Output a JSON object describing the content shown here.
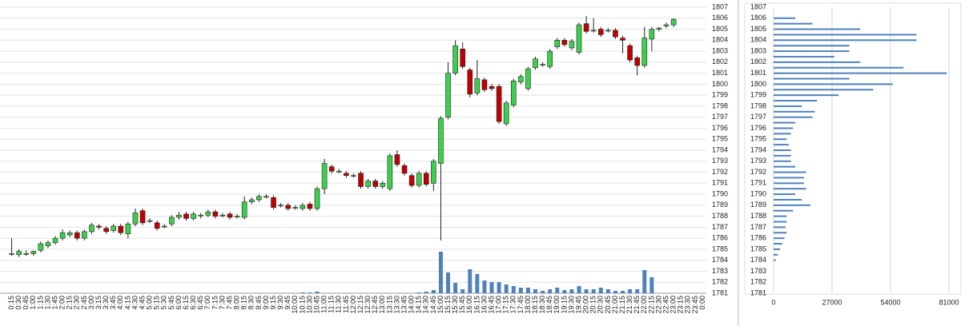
{
  "chart_data": [
    {
      "type": "candlestick",
      "categories": [
        "0:15",
        "0:30",
        "0:45",
        "1:00",
        "1:15",
        "1:30",
        "1:45",
        "2:00",
        "2:15",
        "2:30",
        "2:45",
        "3:00",
        "3:15",
        "3:30",
        "3:45",
        "4:00",
        "4:15",
        "4:30",
        "4:45",
        "5:00",
        "5:15",
        "5:30",
        "5:45",
        "6:00",
        "6:15",
        "6:30",
        "6:45",
        "7:00",
        "7:15",
        "7:30",
        "7:45",
        "8:00",
        "8:15",
        "8:30",
        "8:45",
        "9:00",
        "9:15",
        "9:30",
        "9:45",
        "10:00",
        "10:15",
        "10:30",
        "10:45",
        "11:00",
        "11:15",
        "11:30",
        "11:45",
        "12:00",
        "12:15",
        "12:30",
        "12:45",
        "13:00",
        "13:15",
        "13:30",
        "13:45",
        "14:00",
        "14:15",
        "14:30",
        "14:45",
        "15:00",
        "15:15",
        "15:30",
        "15:45",
        "16:00",
        "16:15",
        "16:30",
        "16:45",
        "17:00",
        "17:15",
        "17:30",
        "17:45",
        "18:00",
        "18:15",
        "18:30",
        "18:45",
        "19:00",
        "19:15",
        "19:30",
        "19:45",
        "20:00",
        "20:15",
        "20:30",
        "20:45",
        "21:00",
        "21:15",
        "21:30",
        "21:45",
        "22:00",
        "22:15",
        "22:30",
        "22:45",
        "23:00",
        "23:15",
        "23:30",
        "23:45",
        "0:00"
      ],
      "open": [
        1784.6,
        1784.5,
        1784.6,
        1784.6,
        1784.9,
        1785.3,
        1785.6,
        1786.0,
        1786.3,
        1786.5,
        1786.0,
        1786.6,
        1787.1,
        1786.9,
        1786.7,
        1787.1,
        1786.4,
        1787.3,
        1788.5,
        1787.6,
        1787.4,
        1787.1,
        1787.3,
        1787.9,
        1788.2,
        1787.8,
        1788.1,
        1788.1,
        1788.4,
        1788.1,
        1788.2,
        1788.0,
        1787.9,
        1789.3,
        1789.5,
        1789.8,
        1789.7,
        1789.0,
        1789.0,
        1788.8,
        1788.7,
        1789.1,
        1788.7,
        1790.5,
        1792.5,
        1792.1,
        1791.9,
        1791.7,
        1791.9,
        1790.7,
        1791.2,
        1790.7,
        1790.5,
        1793.6,
        1792.6,
        1791.7,
        1790.8,
        1791.9,
        1791.0,
        1792.8,
        1797.0,
        1801.0,
        1803.2,
        1801.3,
        1799.2,
        1800.4,
        1799.8,
        1799.8,
        1796.4,
        1798.1,
        1800.2,
        1799.6,
        1801.5,
        1801.8,
        1801.6,
        1803.4,
        1804.0,
        1803.3,
        1802.9,
        1805.5,
        1804.9,
        1805.0,
        1804.9,
        1804.9,
        1804.2,
        1803.5,
        1802.4,
        1801.7,
        1804.1,
        1805.0,
        1805.3,
        1805.4,
        null,
        null,
        null,
        null
      ],
      "high": [
        1786.0,
        1785.0,
        1784.9,
        1784.9,
        1785.7,
        1785.8,
        1786.2,
        1786.8,
        1786.7,
        1786.7,
        1786.8,
        1787.4,
        1787.3,
        1787.1,
        1787.3,
        1787.3,
        1787.5,
        1788.7,
        1788.7,
        1787.8,
        1787.6,
        1787.3,
        1788.1,
        1788.4,
        1788.4,
        1788.4,
        1788.3,
        1788.6,
        1788.6,
        1788.3,
        1788.4,
        1788.2,
        1789.8,
        1789.7,
        1790.0,
        1790.0,
        1789.9,
        1789.2,
        1789.2,
        1789.0,
        1789.2,
        1789.3,
        1790.7,
        1793.2,
        1792.7,
        1792.3,
        1792.1,
        1791.9,
        1792.1,
        1791.4,
        1791.4,
        1791.2,
        1793.7,
        1794.0,
        1792.8,
        1791.9,
        1792.1,
        1792.1,
        1793.2,
        1797.1,
        1802.0,
        1804.0,
        1803.8,
        1801.5,
        1802.2,
        1800.6,
        1800.0,
        1800.0,
        1798.5,
        1800.5,
        1800.9,
        1801.6,
        1802.5,
        1802.0,
        1803.2,
        1804.2,
        1804.2,
        1804.1,
        1805.6,
        1806.2,
        1806.0,
        1805.2,
        1805.1,
        1805.1,
        1804.4,
        1803.7,
        1802.6,
        1805.2,
        1805.2,
        1805.2,
        1805.6,
        1806.0,
        null,
        null,
        null,
        null
      ],
      "low": [
        1784.4,
        1784.3,
        1784.4,
        1784.4,
        1784.7,
        1785.1,
        1785.4,
        1785.8,
        1786.1,
        1785.8,
        1785.8,
        1786.4,
        1786.8,
        1786.4,
        1786.5,
        1786.3,
        1786.0,
        1787.1,
        1787.2,
        1787.4,
        1786.7,
        1786.9,
        1787.1,
        1787.7,
        1787.6,
        1787.6,
        1787.8,
        1787.9,
        1787.8,
        1787.9,
        1787.7,
        1787.8,
        1787.7,
        1789.1,
        1789.3,
        1789.6,
        1788.6,
        1788.8,
        1788.5,
        1788.6,
        1788.5,
        1788.5,
        1788.5,
        1790.0,
        1791.9,
        1791.9,
        1791.5,
        1791.5,
        1790.5,
        1790.5,
        1790.5,
        1790.5,
        1790.3,
        1792.5,
        1791.7,
        1790.6,
        1790.6,
        1790.7,
        1790.3,
        1785.8,
        1796.8,
        1800.8,
        1801.4,
        1798.8,
        1799.0,
        1799.3,
        1799.4,
        1796.4,
        1796.2,
        1797.9,
        1800.0,
        1799.4,
        1801.3,
        1801.6,
        1801.4,
        1803.2,
        1803.4,
        1803.1,
        1802.7,
        1804.6,
        1804.7,
        1804.3,
        1804.7,
        1804.1,
        1802.8,
        1802.0,
        1800.8,
        1801.5,
        1803.0,
        1804.8,
        1805.1,
        1805.2,
        null,
        null,
        null,
        null
      ],
      "close": [
        1784.6,
        1784.8,
        1784.6,
        1784.8,
        1785.5,
        1785.6,
        1786.0,
        1786.5,
        1786.5,
        1786.0,
        1786.6,
        1787.2,
        1787.0,
        1786.6,
        1787.1,
        1786.5,
        1787.3,
        1788.3,
        1787.4,
        1787.6,
        1786.9,
        1787.1,
        1787.9,
        1788.1,
        1787.8,
        1788.2,
        1788.1,
        1788.4,
        1788.0,
        1788.1,
        1787.9,
        1788.0,
        1789.3,
        1789.5,
        1789.8,
        1789.8,
        1788.8,
        1789.0,
        1788.7,
        1788.8,
        1789.0,
        1788.7,
        1790.5,
        1792.8,
        1792.1,
        1792.1,
        1791.7,
        1791.7,
        1790.7,
        1791.2,
        1790.7,
        1791.0,
        1793.5,
        1792.7,
        1791.9,
        1790.8,
        1791.9,
        1790.9,
        1793.0,
        1796.9,
        1801.0,
        1803.5,
        1801.6,
        1799.1,
        1800.5,
        1799.5,
        1799.6,
        1796.6,
        1798.3,
        1800.3,
        1800.7,
        1801.4,
        1802.3,
        1801.8,
        1803.0,
        1804.0,
        1803.6,
        1803.9,
        1805.4,
        1804.8,
        1804.9,
        1804.5,
        1804.9,
        1804.3,
        1804.0,
        1802.2,
        1801.7,
        1804.2,
        1805.0,
        1805.1,
        1805.4,
        1805.9,
        null,
        null,
        null,
        null
      ],
      "volume": [
        0,
        0,
        0,
        0,
        0,
        0,
        0,
        0,
        0,
        0,
        0,
        0,
        0,
        0,
        0,
        0,
        0,
        0,
        0,
        0,
        0,
        0,
        0,
        0,
        0,
        0,
        0,
        0,
        0,
        0,
        0,
        0,
        0,
        0,
        0,
        0,
        0,
        0,
        0,
        0,
        1,
        1,
        2,
        0,
        0,
        0,
        0,
        0,
        0,
        0,
        0,
        0,
        0,
        0,
        0,
        0,
        1,
        2,
        4,
        52,
        26,
        13,
        5,
        30,
        24,
        16,
        14,
        14,
        11,
        9,
        7,
        7,
        5,
        3,
        5,
        7,
        4,
        5,
        9,
        5,
        5,
        7,
        5,
        3,
        3,
        5,
        5,
        29,
        20,
        0,
        0,
        0,
        0,
        0,
        0,
        0
      ],
      "up_color": "#3ccf4e",
      "down_color": "#c00000",
      "volume_color": "#4f81bd",
      "ylim": [
        1781,
        1807
      ],
      "yticks": [
        1781,
        1782,
        1783,
        1784,
        1785,
        1786,
        1787,
        1788,
        1789,
        1790,
        1791,
        1792,
        1793,
        1794,
        1795,
        1796,
        1797,
        1798,
        1799,
        1800,
        1801,
        1802,
        1803,
        1804,
        1805,
        1806,
        1807
      ],
      "grid": true
    },
    {
      "type": "barh",
      "y": [
        1784,
        1784.5,
        1785,
        1785.5,
        1786,
        1786.5,
        1787,
        1787.5,
        1788,
        1788.5,
        1789,
        1789.5,
        1790,
        1790.5,
        1791,
        1791.5,
        1792,
        1792.5,
        1793,
        1793.5,
        1794,
        1794.5,
        1795,
        1795.5,
        1796,
        1796.5,
        1797,
        1797.5,
        1798,
        1798.5,
        1799,
        1799.5,
        1800,
        1800.5,
        1801,
        1801.5,
        1802,
        1802.5,
        1803,
        1803.5,
        1804,
        1804.5,
        1805,
        1805.5,
        1806
      ],
      "values": [
        1000,
        2000,
        3000,
        4000,
        5000,
        6000,
        5500,
        6000,
        6000,
        9000,
        17000,
        13000,
        10000,
        15000,
        14000,
        14000,
        15000,
        10000,
        8000,
        8000,
        8000,
        7000,
        6000,
        8000,
        9000,
        10000,
        18000,
        19000,
        13000,
        20000,
        30000,
        46000,
        55000,
        35000,
        80000,
        60000,
        40000,
        28000,
        35000,
        35000,
        66000,
        66000,
        40000,
        18000,
        10000
      ],
      "color": "#4f81bd",
      "xlim": [
        0,
        81000
      ],
      "xticks": [
        0,
        27000,
        54000,
        81000
      ],
      "ylim": [
        1781,
        1807
      ],
      "yticks": [
        1781,
        1782,
        1783,
        1784,
        1785,
        1786,
        1787,
        1788,
        1789,
        1790,
        1791,
        1792,
        1793,
        1794,
        1795,
        1796,
        1797,
        1798,
        1799,
        1800,
        1801,
        1802,
        1803,
        1804,
        1805,
        1806,
        1807
      ],
      "grid": true
    }
  ]
}
